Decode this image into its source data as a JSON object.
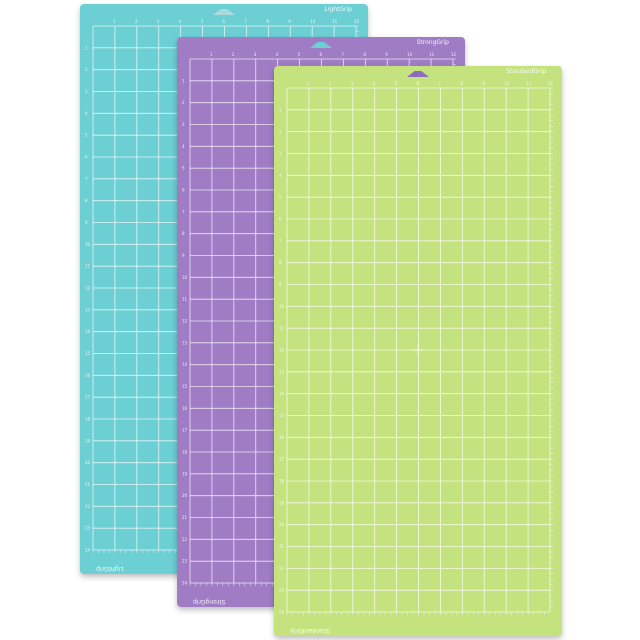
{
  "mats": [
    {
      "id": "light",
      "label": "LightGrip",
      "color": "#6ccfd3",
      "tab_color": "#a9d9df"
    },
    {
      "id": "strong",
      "label": "StrongGrip",
      "color": "#a07cc5",
      "tab_color": "#6ccfd3"
    },
    {
      "id": "standard",
      "label": "StandardGrip",
      "color": "#c4e27e",
      "tab_color": "#8b6dbb"
    }
  ],
  "grid": {
    "columns": 12,
    "rows": 24
  }
}
